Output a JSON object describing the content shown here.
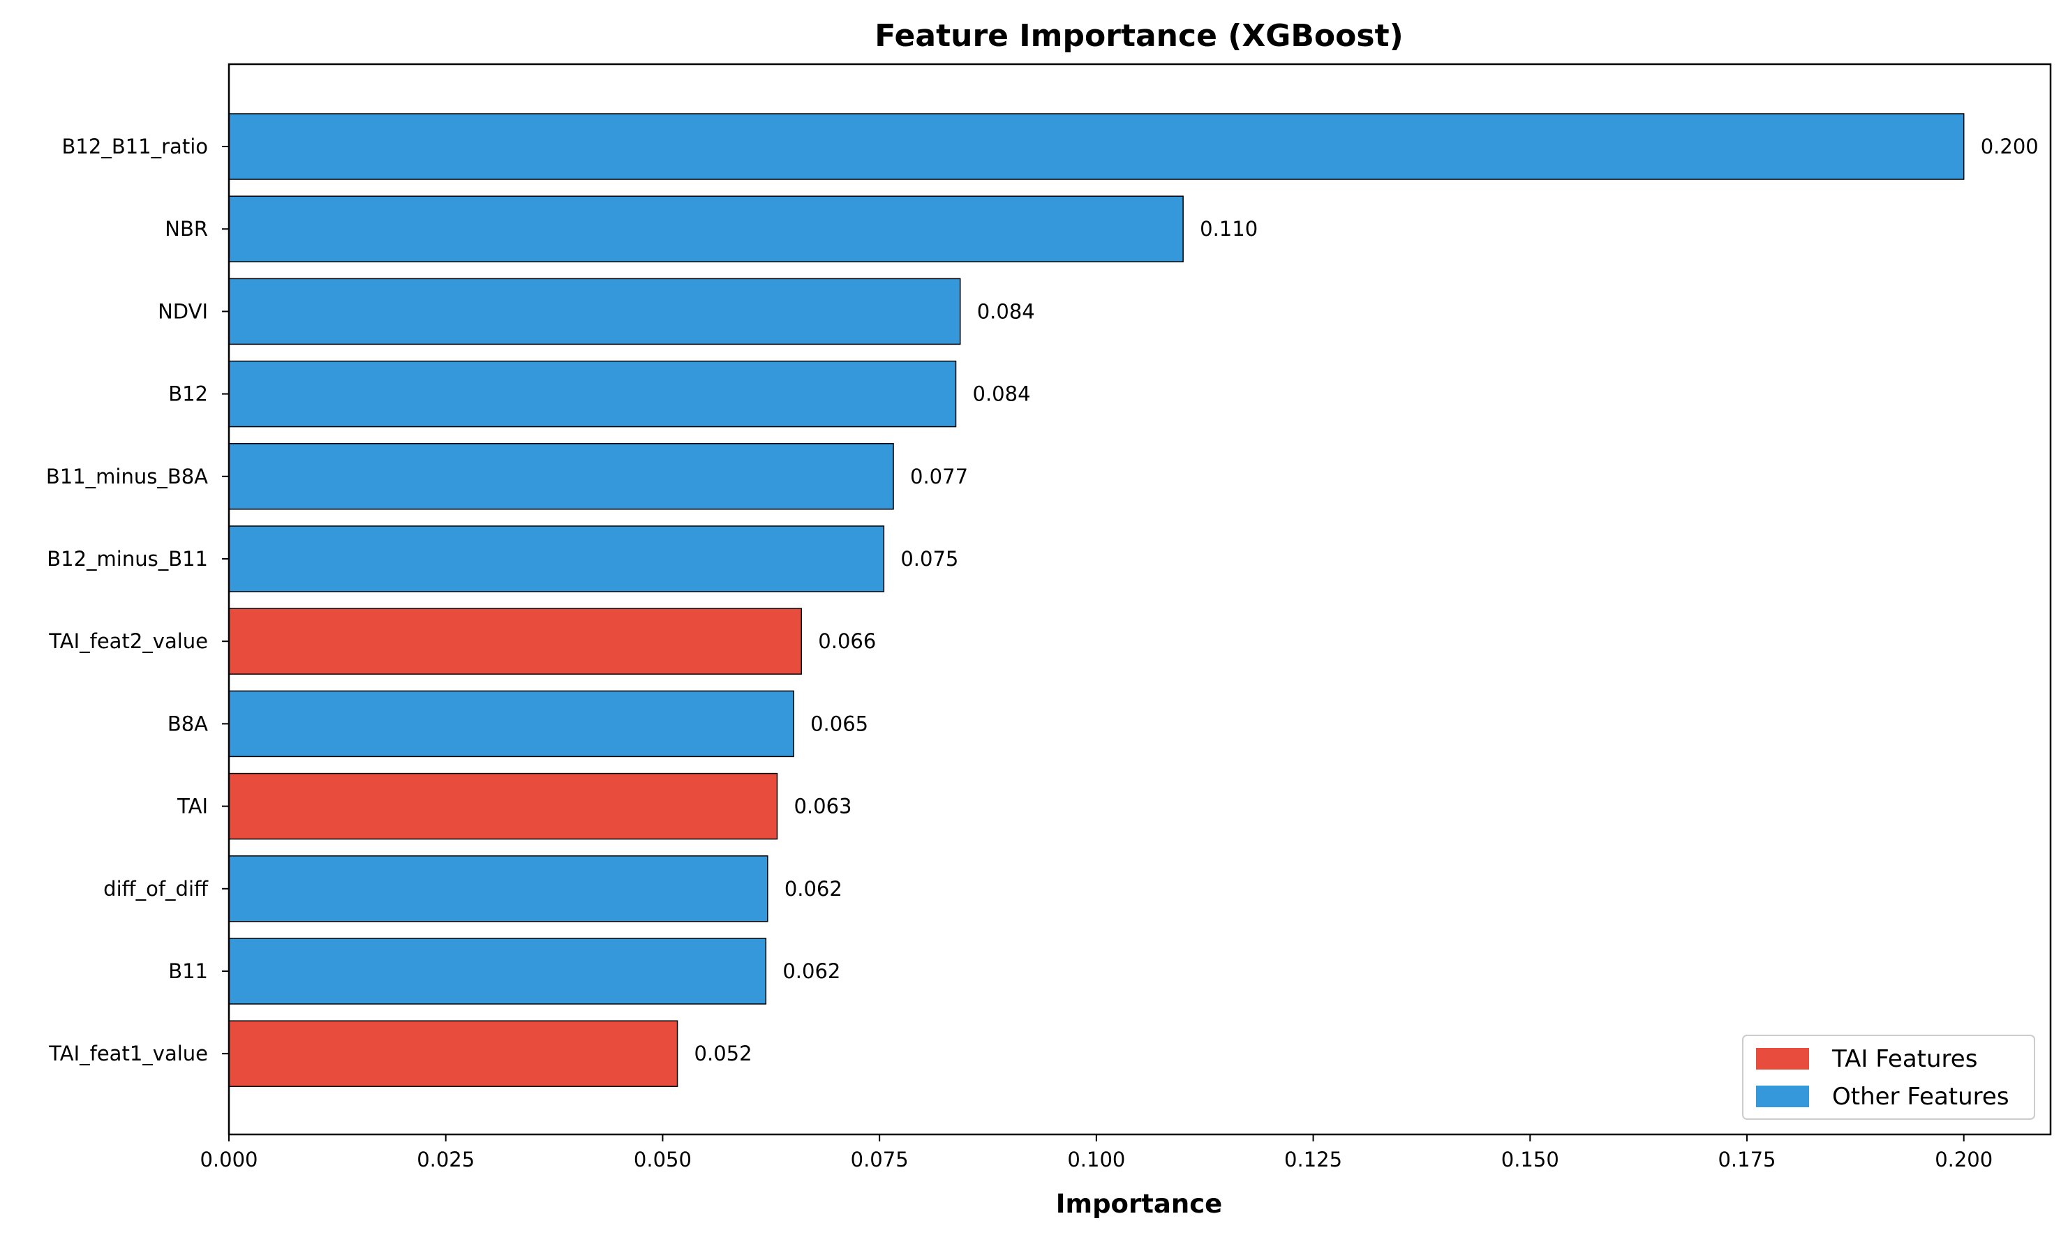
{
  "chart_data": {
    "type": "bar",
    "orientation": "horizontal",
    "title": "Feature Importance (XGBoost)",
    "xlabel": "Importance",
    "ylabel": "",
    "xlim": [
      0,
      0.21
    ],
    "xticks": [
      0.0,
      0.025,
      0.05,
      0.075,
      0.1,
      0.125,
      0.15,
      0.175,
      0.2
    ],
    "xtick_labels": [
      "0.000",
      "0.025",
      "0.050",
      "0.075",
      "0.100",
      "0.125",
      "0.150",
      "0.175",
      "0.200"
    ],
    "grid": false,
    "legend_position": "bottom-right",
    "legend": [
      {
        "label": "TAI Features",
        "color": "#e74c3c"
      },
      {
        "label": "Other Features",
        "color": "#3498db"
      }
    ],
    "categories": [
      "B12_B11_ratio",
      "NBR",
      "NDVI",
      "B12",
      "B11_minus_B8A",
      "B12_minus_B11",
      "TAI_feat2_value",
      "B8A",
      "TAI",
      "diff_of_diff",
      "B11",
      "TAI_feat1_value"
    ],
    "values": [
      0.2,
      0.11,
      0.0843,
      0.0838,
      0.0766,
      0.0755,
      0.066,
      0.0651,
      0.0632,
      0.0621,
      0.0619,
      0.0517
    ],
    "value_labels": [
      "0.200",
      "0.110",
      "0.084",
      "0.084",
      "0.077",
      "0.075",
      "0.066",
      "0.065",
      "0.063",
      "0.062",
      "0.062",
      "0.052"
    ],
    "groups": [
      "Other Features",
      "Other Features",
      "Other Features",
      "Other Features",
      "Other Features",
      "Other Features",
      "TAI Features",
      "Other Features",
      "TAI Features",
      "Other Features",
      "Other Features",
      "TAI Features"
    ]
  }
}
